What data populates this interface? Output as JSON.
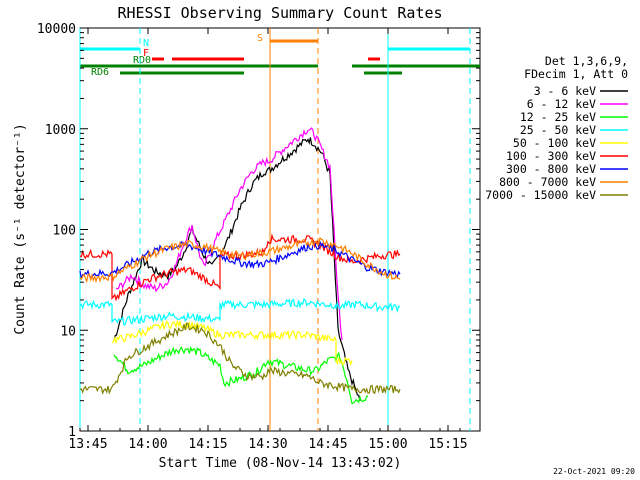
{
  "chart_data": {
    "type": "line",
    "title": "RHESSI Observing Summary Count Rates",
    "xlabel": "Start Time (08-Nov-14 13:43:02)",
    "ylabel": "Count Rate (s⁻¹ detector⁻¹)",
    "yscale": "log",
    "ylim": [
      1,
      10000
    ],
    "xlim_minutes_after_13_43": [
      0,
      100
    ],
    "x_ticks": [
      {
        "label": "13:45",
        "min": 2
      },
      {
        "label": "14:00",
        "min": 17
      },
      {
        "label": "14:15",
        "min": 32
      },
      {
        "label": "14:30",
        "min": 47
      },
      {
        "label": "14:45",
        "min": 62
      },
      {
        "label": "15:00",
        "min": 77
      },
      {
        "label": "15:15",
        "min": 92
      }
    ],
    "y_ticks": [
      {
        "label": "1",
        "v": 1
      },
      {
        "label": "10",
        "v": 10
      },
      {
        "label": "100",
        "v": 100
      },
      {
        "label": "1000",
        "v": 1000
      },
      {
        "label": "10000",
        "v": 10000
      }
    ],
    "legend_header": [
      "Det 1,3,6,9,",
      "FDecim 1, Att 0"
    ],
    "series": [
      {
        "name": "3 - 6 keV",
        "color": "#000000",
        "x": [
          8.5,
          12,
          15.5,
          19,
          22,
          24,
          26,
          28,
          31,
          33,
          37,
          40,
          43,
          46,
          47,
          57,
          58.5,
          60.5,
          62.5,
          64.5,
          65.5,
          67,
          70
        ],
        "y": [
          8,
          22,
          50,
          38,
          35,
          42,
          60,
          100,
          55,
          42,
          80,
          160,
          280,
          380,
          380,
          800,
          720,
          570,
          350,
          10,
          7,
          4,
          2
        ]
      },
      {
        "name": "6 - 12 keV",
        "color": "#ff00ff",
        "x": [
          9,
          13,
          16,
          19,
          22,
          24,
          26,
          28,
          30,
          31,
          34,
          37,
          40,
          43,
          46,
          47,
          57,
          58.5,
          60.5,
          62.5,
          64.5,
          65.5
        ],
        "y": [
          25,
          35,
          28,
          26,
          30,
          45,
          75,
          110,
          55,
          42,
          80,
          140,
          250,
          380,
          470,
          470,
          1000,
          900,
          620,
          420,
          22,
          8
        ]
      },
      {
        "name": "12 - 25 keV",
        "color": "#00ff00",
        "x": [
          8.5,
          12,
          16,
          20,
          24,
          27,
          30,
          33,
          35,
          36,
          40,
          44,
          47,
          57,
          59,
          62,
          65,
          67,
          68,
          72
        ],
        "y": [
          6,
          4,
          4.5,
          5.5,
          6.5,
          6.5,
          6,
          5,
          4.5,
          3,
          3.3,
          3.8,
          5,
          4,
          4,
          5,
          5.5,
          3,
          2,
          2.2
        ]
      },
      {
        "name": "25 - 50 keV",
        "color": "#00ffff",
        "x": [
          0,
          8,
          8.01,
          16,
          22,
          28,
          33,
          35,
          35.01,
          40,
          47,
          57,
          62,
          64,
          64.01,
          68,
          70,
          75,
          80
        ],
        "y": [
          18,
          18,
          12,
          13,
          14,
          13.5,
          13,
          12.5,
          18,
          18,
          18,
          19,
          18,
          18,
          17,
          18,
          18,
          17,
          17
        ]
      },
      {
        "name": "50 - 100 keV",
        "color": "#ffff00",
        "x": [
          8,
          12,
          17,
          22,
          27,
          31,
          35,
          35.01,
          40,
          47,
          57,
          60,
          64,
          64.01,
          68
        ],
        "y": [
          8,
          8.5,
          10,
          11.5,
          11.5,
          10.5,
          9,
          9,
          9,
          9,
          9,
          8.5,
          8,
          5,
          5
        ]
      },
      {
        "name": "100 - 300 keV",
        "color": "#ff0000",
        "x": [
          0,
          8,
          8.01,
          12,
          17,
          22,
          27,
          31,
          35,
          35.01,
          40,
          44,
          46,
          47,
          57,
          60,
          64,
          68,
          72,
          76,
          80
        ],
        "y": [
          57,
          57,
          20,
          25,
          32,
          37,
          40,
          33,
          26,
          55,
          55,
          58,
          60,
          80,
          80,
          70,
          55,
          48,
          52,
          56,
          57
        ]
      },
      {
        "name": "300 - 800 keV",
        "color": "#0000ff",
        "x": [
          0,
          8,
          12,
          17,
          22,
          27,
          31,
          35,
          40,
          44,
          47,
          57,
          60,
          64,
          68,
          72,
          76,
          80
        ],
        "y": [
          36,
          37,
          45,
          58,
          67,
          70,
          62,
          55,
          47,
          45,
          47,
          68,
          70,
          62,
          50,
          42,
          38,
          36
        ]
      },
      {
        "name": "800 - 7000 keV",
        "color": "#ff8000",
        "x": [
          0,
          8,
          12,
          17,
          22,
          27,
          31,
          35,
          40,
          44,
          47,
          57,
          60,
          64,
          68,
          72,
          76,
          80
        ],
        "y": [
          33,
          34,
          42,
          55,
          65,
          72,
          68,
          60,
          55,
          58,
          60,
          75,
          78,
          70,
          58,
          45,
          37,
          32
        ]
      },
      {
        "name": "7000 - 15000 keV",
        "color": "#808000",
        "x": [
          0,
          8,
          12,
          17,
          22,
          27,
          31,
          35,
          38,
          42,
          46,
          47,
          57,
          60,
          64,
          68,
          72,
          76,
          80
        ],
        "y": [
          2.6,
          2.6,
          5.5,
          7,
          9,
          11,
          10,
          7,
          4.5,
          3.5,
          3.5,
          4,
          3.5,
          3,
          2.8,
          2.6,
          2.6,
          2.6,
          2.6
        ]
      }
    ],
    "dashed_vlines": [
      {
        "min": 15,
        "color": "#00ffff"
      },
      {
        "min": 59.5,
        "color": "#ff8000"
      },
      {
        "min": 97.5,
        "color": "#00ffff"
      }
    ],
    "solid_vlines": [
      {
        "min": 0,
        "color": "#00ffff"
      },
      {
        "min": 47.5,
        "color": "#ff8000"
      },
      {
        "min": 77,
        "color": "#00ffff"
      }
    ],
    "flag_bars": [
      {
        "label": "N",
        "color": "#00ffff",
        "level": 0,
        "segments": [
          [
            0,
            15
          ],
          [
            77,
            97.5
          ]
        ]
      },
      {
        "label": "F",
        "color": "#ff0000",
        "level": 1,
        "segments": [
          [
            18,
            21
          ],
          [
            23,
            41
          ],
          [
            72,
            75
          ]
        ]
      },
      {
        "label": "S",
        "color": "#ff8000",
        "level": 2,
        "segments": [
          [
            47.5,
            59.5
          ]
        ]
      },
      {
        "label": "RD0",
        "color": "#008000",
        "level": 3,
        "segments": [
          [
            0,
            35
          ],
          [
            35,
            59.5
          ],
          [
            68,
            100
          ]
        ]
      },
      {
        "label": "RD6",
        "color": "#008000",
        "level": 4,
        "segments": [
          [
            10,
            41
          ],
          [
            71,
            80.5
          ]
        ]
      }
    ]
  },
  "footer": {
    "timestamp": "22-Oct-2021 09:20"
  }
}
